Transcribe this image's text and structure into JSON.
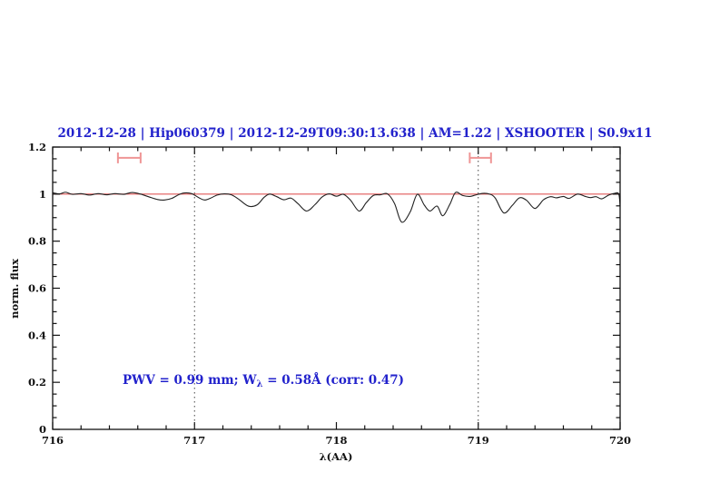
{
  "title": {
    "text": "2012-12-28 | Hip060379 | 2012-12-29T09:30:13.638 | AM=1.22 | XSHOOTER | S0.9x11"
  },
  "annotation": {
    "prefix": "PWV = 0.99 mm; W",
    "sub": "λ",
    "suffix": " = 0.58Å (corr: 0.47)"
  },
  "colors": {
    "title_blue": "#2222cc",
    "annotation_blue": "#2222cc",
    "spectrum_line": "#222222",
    "reference_line_red": "#e05858",
    "band_marker_pink": "#ef9595",
    "dotted_guide": "#444444",
    "axis_black": "#111111"
  },
  "chart_data": {
    "type": "line",
    "title": "2012-12-28 | Hip060379 | 2012-12-29T09:30:13.638 | AM=1.22 | XSHOOTER | S0.9x11",
    "xlabel": "λ(AA)",
    "ylabel": "norm. flux",
    "xlim": [
      716,
      720
    ],
    "ylim": [
      0,
      1.2
    ],
    "grid": false,
    "x_tick_values": [
      716,
      717,
      718,
      719,
      720
    ],
    "x_tick_labels": [
      "716",
      "717",
      "718",
      "719",
      "720"
    ],
    "x_minor_step": 0.2,
    "y_tick_values": [
      0,
      0.2,
      0.4,
      0.6,
      0.8,
      1,
      1.2
    ],
    "y_tick_labels": [
      "0",
      "0.2",
      "0.4",
      "0.6",
      "0.8",
      "1",
      "1.2"
    ],
    "y_minor_step": 0.05,
    "reference_line_y": 1.0,
    "dotted_vlines_x": [
      717,
      719
    ],
    "band_markers": [
      {
        "x_start": 716.46,
        "x_end": 716.62,
        "y": 1.154,
        "cap_half_height": 0.023
      },
      {
        "x_start": 718.94,
        "x_end": 719.09,
        "y": 1.154,
        "cap_half_height": 0.023
      }
    ],
    "series": [
      {
        "name": "normalized telluric spectrum",
        "points": [
          [
            716.0,
            1.006
          ],
          [
            716.05,
            1.001
          ],
          [
            716.09,
            1.008
          ],
          [
            716.14,
            0.999
          ],
          [
            716.2,
            1.002
          ],
          [
            716.26,
            0.996
          ],
          [
            716.32,
            1.002
          ],
          [
            716.38,
            0.997
          ],
          [
            716.44,
            1.002
          ],
          [
            716.5,
            0.999
          ],
          [
            716.56,
            1.007
          ],
          [
            716.62,
            1.0
          ],
          [
            716.68,
            0.988
          ],
          [
            716.74,
            0.977
          ],
          [
            716.79,
            0.975
          ],
          [
            716.84,
            0.982
          ],
          [
            716.89,
            0.998
          ],
          [
            716.93,
            1.005
          ],
          [
            716.98,
            1.002
          ],
          [
            717.03,
            0.985
          ],
          [
            717.07,
            0.975
          ],
          [
            717.11,
            0.982
          ],
          [
            717.16,
            0.996
          ],
          [
            717.21,
            1.001
          ],
          [
            717.26,
            0.997
          ],
          [
            717.31,
            0.979
          ],
          [
            717.38,
            0.949
          ],
          [
            717.44,
            0.954
          ],
          [
            717.49,
            0.986
          ],
          [
            717.53,
            1.0
          ],
          [
            717.58,
            0.989
          ],
          [
            717.63,
            0.976
          ],
          [
            717.68,
            0.983
          ],
          [
            717.73,
            0.959
          ],
          [
            717.79,
            0.928
          ],
          [
            717.85,
            0.956
          ],
          [
            717.9,
            0.988
          ],
          [
            717.95,
            1.001
          ],
          [
            718.0,
            0.991
          ],
          [
            718.05,
            0.999
          ],
          [
            718.1,
            0.974
          ],
          [
            718.16,
            0.928
          ],
          [
            718.21,
            0.963
          ],
          [
            718.26,
            0.994
          ],
          [
            718.31,
            0.997
          ],
          [
            718.36,
            1.001
          ],
          [
            718.41,
            0.96
          ],
          [
            718.46,
            0.881
          ],
          [
            718.52,
            0.924
          ],
          [
            718.57,
            0.999
          ],
          [
            718.62,
            0.953
          ],
          [
            718.66,
            0.928
          ],
          [
            718.71,
            0.949
          ],
          [
            718.75,
            0.908
          ],
          [
            718.8,
            0.957
          ],
          [
            718.84,
            1.007
          ],
          [
            718.89,
            0.994
          ],
          [
            718.94,
            0.99
          ],
          [
            718.98,
            0.996
          ],
          [
            719.03,
            1.003
          ],
          [
            719.08,
            1.0
          ],
          [
            719.12,
            0.983
          ],
          [
            719.18,
            0.92
          ],
          [
            719.24,
            0.952
          ],
          [
            719.29,
            0.984
          ],
          [
            719.34,
            0.974
          ],
          [
            719.4,
            0.939
          ],
          [
            719.46,
            0.976
          ],
          [
            719.51,
            0.989
          ],
          [
            719.55,
            0.984
          ],
          [
            719.6,
            0.99
          ],
          [
            719.64,
            0.982
          ],
          [
            719.7,
            1.0
          ],
          [
            719.75,
            0.991
          ],
          [
            719.79,
            0.985
          ],
          [
            719.83,
            0.989
          ],
          [
            719.87,
            0.98
          ],
          [
            719.92,
            0.996
          ],
          [
            719.96,
            1.003
          ],
          [
            719.99,
            1.001
          ],
          [
            720.0,
            0.95
          ]
        ]
      }
    ]
  }
}
